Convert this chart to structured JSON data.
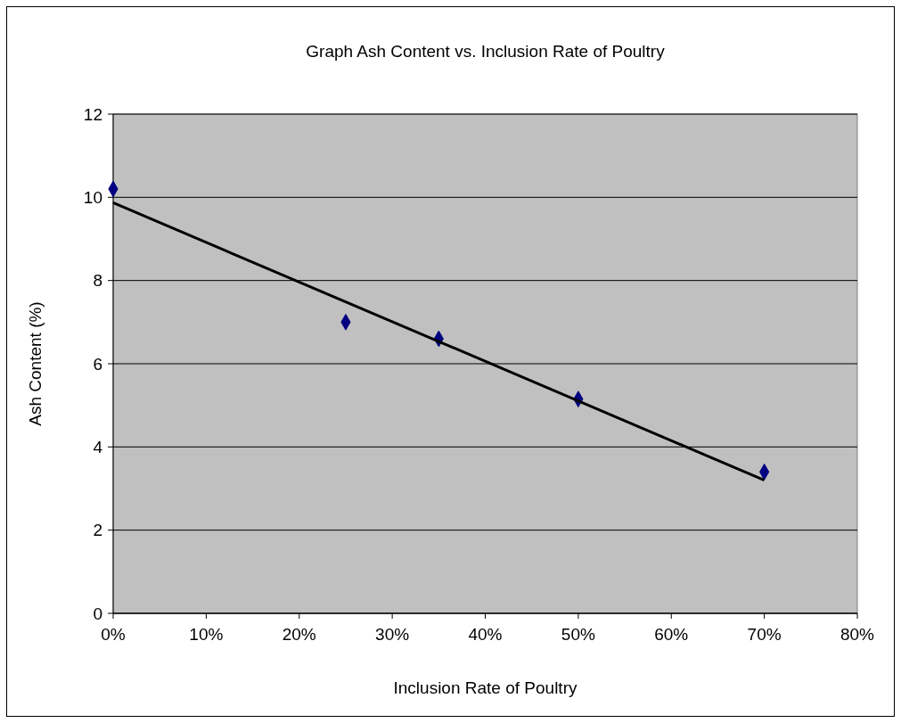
{
  "chart_data": {
    "type": "scatter",
    "title": "Graph Ash Content vs. Inclusion Rate of Poultry",
    "xlabel": "Inclusion Rate of Poultry",
    "ylabel": "Ash Content (%)",
    "xlim": [
      0,
      0.8
    ],
    "xticks": [
      {
        "value": 0,
        "label": "0%"
      },
      {
        "value": 0.1,
        "label": "10%"
      },
      {
        "value": 0.2,
        "label": "20%"
      },
      {
        "value": 0.3,
        "label": "30%"
      },
      {
        "value": 0.4,
        "label": "40%"
      },
      {
        "value": 0.5,
        "label": "50%"
      },
      {
        "value": 0.6,
        "label": "60%"
      },
      {
        "value": 0.7,
        "label": "70%"
      },
      {
        "value": 0.8,
        "label": "80%"
      }
    ],
    "ylim": [
      0,
      12
    ],
    "yticks": [
      0,
      2,
      4,
      6,
      8,
      10,
      12
    ],
    "grid": "y",
    "marker": "diamond",
    "series": [
      {
        "color": "#000080",
        "x": [
          0,
          0.25,
          0.35,
          0.5,
          0.7
        ],
        "values": [
          10.2,
          7.0,
          6.6,
          5.15,
          3.4
        ]
      },
      {
        "type": "line",
        "color": "#000000",
        "x": [
          0,
          0.7
        ],
        "values": [
          9.87,
          3.2
        ],
        "marker": "none",
        "line_style": "solid"
      }
    ]
  }
}
